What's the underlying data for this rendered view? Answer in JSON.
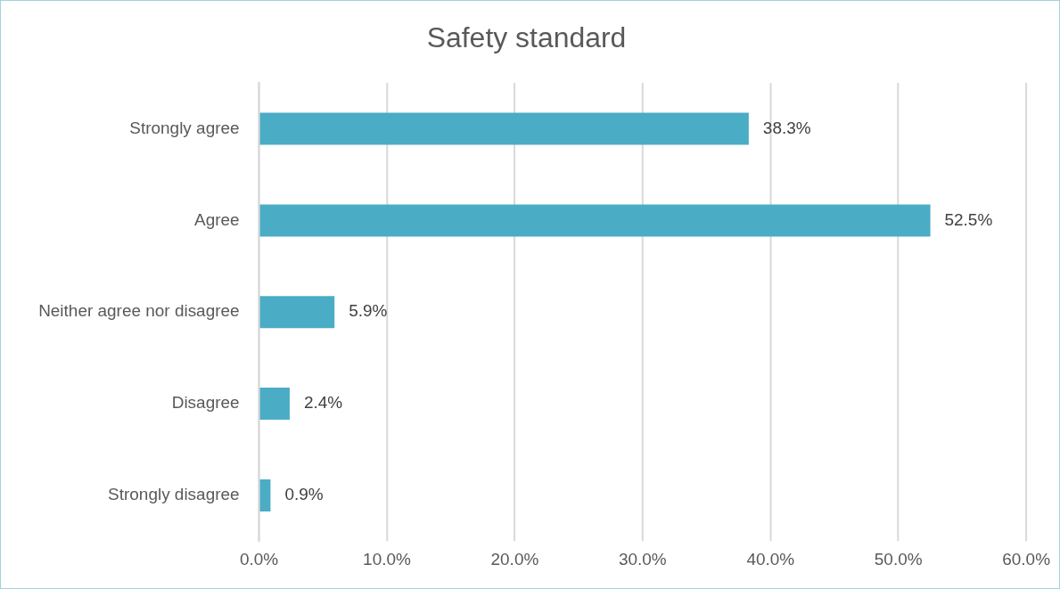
{
  "chart_data": {
    "type": "bar",
    "orientation": "horizontal",
    "title": "Safety standard",
    "categories": [
      "Strongly agree",
      "Agree",
      "Neither agree nor disagree",
      "Disagree",
      "Strongly disagree"
    ],
    "values": [
      38.3,
      52.5,
      5.9,
      2.4,
      0.9
    ],
    "value_labels": [
      "38.3%",
      "52.5%",
      "5.9%",
      "2.4%",
      "0.9%"
    ],
    "color": "#4bacc6",
    "xlim": [
      0,
      60
    ],
    "xticks": [
      {
        "value": 0,
        "label": "0.0%"
      },
      {
        "value": 10,
        "label": "10.0%"
      },
      {
        "value": 20,
        "label": "20.0%"
      },
      {
        "value": 30,
        "label": "30.0%"
      },
      {
        "value": 40,
        "label": "40.0%"
      },
      {
        "value": 50,
        "label": "50.0%"
      },
      {
        "value": 60,
        "label": "60.0%"
      }
    ],
    "grid": "x",
    "legend": false
  }
}
